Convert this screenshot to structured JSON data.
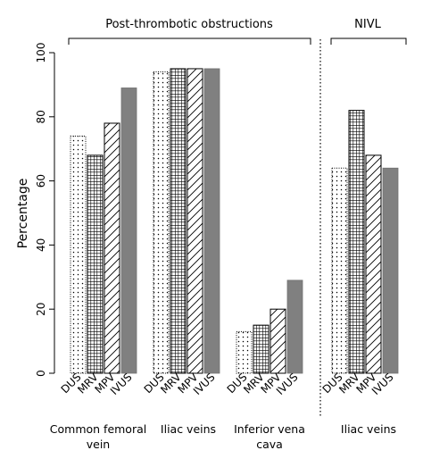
{
  "chart_data": {
    "type": "bar",
    "ylabel": "Percentage",
    "ylim": [
      0,
      100
    ],
    "yticks": [
      0,
      20,
      40,
      60,
      80,
      100
    ],
    "grid": false,
    "group_headers": [
      {
        "label": "Post-thrombotic obstructions"
      },
      {
        "label": "NIVL"
      }
    ],
    "methods": [
      {
        "name": "DUS",
        "pattern": "dots"
      },
      {
        "name": "MRV",
        "pattern": "grid"
      },
      {
        "name": "MPV",
        "pattern": "diagonal"
      },
      {
        "name": "IVUS",
        "pattern": "solid-gray"
      }
    ],
    "groups": [
      {
        "label": "Common femoral vein",
        "values": [
          74,
          68,
          78,
          89
        ]
      },
      {
        "label": "Iliac veins",
        "values": [
          94,
          95,
          95,
          95
        ]
      },
      {
        "label": "Inferior vena cava",
        "values": [
          13,
          15,
          20,
          29
        ]
      },
      {
        "label": "Iliac veins",
        "values": [
          64,
          82,
          68,
          64
        ]
      }
    ],
    "colors": {
      "solid": "#808080",
      "stroke": "#000000"
    }
  }
}
